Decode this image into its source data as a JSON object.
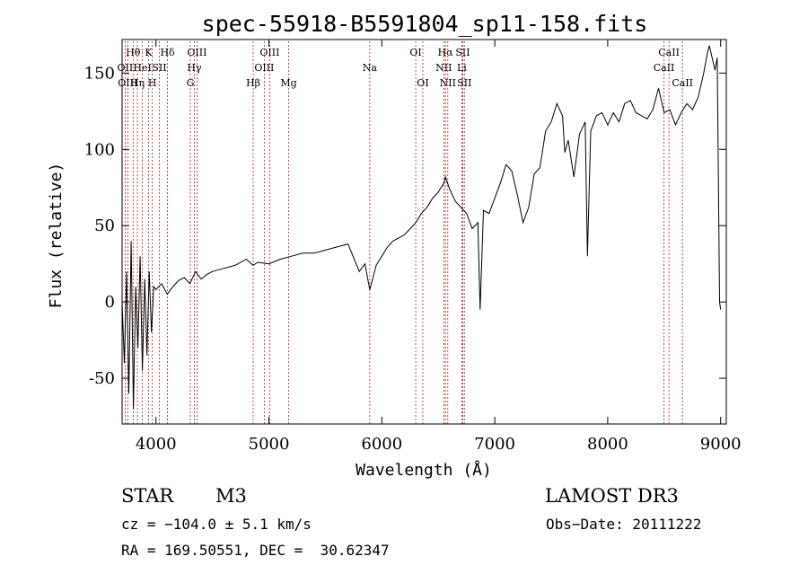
{
  "chart_data": {
    "type": "line",
    "title": "spec-55918-B5591804_sp11-158.fits",
    "xlabel": "Wavelength (Å)",
    "ylabel": "Flux (relative)",
    "xlim": [
      3700,
      9050
    ],
    "ylim": [
      -80,
      172
    ],
    "xticks": [
      4000,
      5000,
      6000,
      7000,
      8000,
      9000
    ],
    "yticks": [
      -50,
      0,
      50,
      100,
      150
    ],
    "grid": false,
    "series": [
      {
        "name": "flux",
        "x": [
          3700,
          3720,
          3740,
          3760,
          3780,
          3800,
          3820,
          3840,
          3860,
          3880,
          3900,
          3920,
          3940,
          3960,
          3980,
          4000,
          4050,
          4100,
          4150,
          4200,
          4250,
          4300,
          4350,
          4400,
          4450,
          4500,
          4600,
          4700,
          4800,
          4861,
          4900,
          5000,
          5100,
          5200,
          5300,
          5400,
          5500,
          5600,
          5700,
          5800,
          5850,
          5893,
          5950,
          6000,
          6050,
          6100,
          6150,
          6200,
          6250,
          6300,
          6350,
          6400,
          6450,
          6500,
          6550,
          6563,
          6600,
          6650,
          6700,
          6750,
          6800,
          6850,
          6870,
          6900,
          6950,
          7000,
          7050,
          7100,
          7150,
          7200,
          7250,
          7300,
          7350,
          7400,
          7450,
          7500,
          7550,
          7600,
          7620,
          7650,
          7700,
          7750,
          7800,
          7820,
          7850,
          7900,
          7950,
          8000,
          8050,
          8100,
          8150,
          8200,
          8250,
          8300,
          8350,
          8400,
          8450,
          8500,
          8550,
          8600,
          8650,
          8700,
          8750,
          8800,
          8850,
          8880,
          8900,
          8950,
          8970,
          8990,
          9000
        ],
        "y": [
          0,
          -40,
          20,
          -60,
          40,
          -70,
          10,
          -30,
          30,
          -45,
          15,
          -35,
          20,
          -20,
          10,
          8,
          12,
          5,
          10,
          14,
          16,
          12,
          20,
          15,
          18,
          20,
          22,
          24,
          28,
          24,
          26,
          25,
          28,
          30,
          32,
          32,
          34,
          36,
          38,
          20,
          25,
          8,
          24,
          30,
          36,
          40,
          42,
          44,
          48,
          52,
          58,
          62,
          68,
          72,
          78,
          82,
          74,
          66,
          62,
          58,
          48,
          52,
          -5,
          60,
          58,
          68,
          78,
          90,
          86,
          70,
          52,
          62,
          84,
          88,
          112,
          118,
          130,
          122,
          98,
          106,
          82,
          110,
          118,
          30,
          112,
          122,
          124,
          116,
          124,
          118,
          130,
          132,
          124,
          122,
          120,
          126,
          140,
          124,
          126,
          116,
          124,
          130,
          126,
          134,
          150,
          162,
          168,
          152,
          160,
          0,
          -5
        ]
      }
    ],
    "lines": [
      {
        "label": "Hθ",
        "w": 3798,
        "row": 1
      },
      {
        "label": "OII",
        "w": 3727,
        "row": 2
      },
      {
        "label": "OIII",
        "w": 3750,
        "row": 3
      },
      {
        "label": "Hη",
        "w": 3835,
        "row": 3
      },
      {
        "label": "HeI",
        "w": 3880,
        "row": 2
      },
      {
        "label": "K",
        "w": 3934,
        "row": 1
      },
      {
        "label": "H",
        "w": 3968,
        "row": 3
      },
      {
        "label": "SII",
        "w": 4030,
        "row": 2
      },
      {
        "label": "Hδ",
        "w": 4102,
        "row": 1
      },
      {
        "label": "OIII",
        "w": 4363,
        "row": 1
      },
      {
        "label": "Hγ",
        "w": 4340,
        "row": 2
      },
      {
        "label": "G",
        "w": 4304,
        "row": 3
      },
      {
        "label": "Hβ",
        "w": 4861,
        "row": 3
      },
      {
        "label": "OIII",
        "w": 5007,
        "row": 1
      },
      {
        "label": "OIII",
        "w": 4959,
        "row": 2
      },
      {
        "label": "Mg",
        "w": 5175,
        "row": 3
      },
      {
        "label": "Na",
        "w": 5893,
        "row": 2
      },
      {
        "label": "OI",
        "w": 6300,
        "row": 1
      },
      {
        "label": "OI",
        "w": 6363,
        "row": 3
      },
      {
        "label": "Hα",
        "w": 6563,
        "row": 1
      },
      {
        "label": "NII",
        "w": 6548,
        "row": 2
      },
      {
        "label": "NII",
        "w": 6584,
        "row": 3
      },
      {
        "label": "SII",
        "w": 6717,
        "row": 1
      },
      {
        "label": "Li",
        "w": 6708,
        "row": 2
      },
      {
        "label": "SII",
        "w": 6731,
        "row": 3
      },
      {
        "label": "CaII",
        "w": 8542,
        "row": 1
      },
      {
        "label": "CaII",
        "w": 8498,
        "row": 2
      },
      {
        "label": "CaII",
        "w": 8662,
        "row": 3
      }
    ]
  },
  "info": {
    "object_class": "STAR",
    "subclass": "M3",
    "survey": "LAMOST DR3",
    "redshift": "cz = −104.0 ± 5.1 km/s",
    "obs_date": "Obs−Date: 20111222",
    "coords": "RA = 169.50551, DEC =  30.62347"
  }
}
